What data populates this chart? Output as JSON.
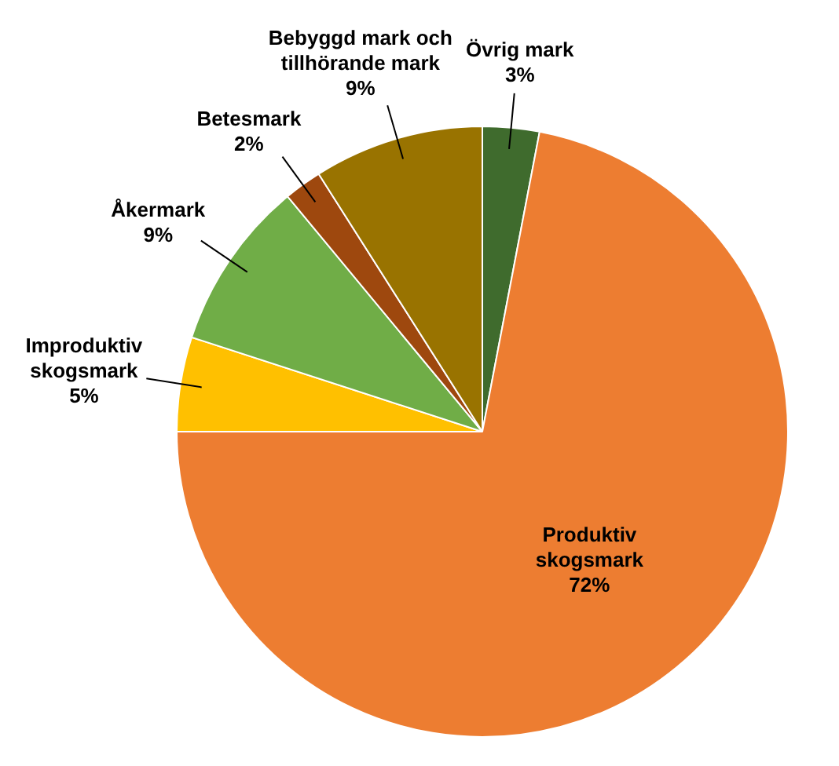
{
  "chart_data": {
    "type": "pie",
    "categories": [
      "Övrig mark",
      "Produktiv skogsmark",
      "Improduktiv skogsmark",
      "Åkermark",
      "Betesmark",
      "Bebyggd mark och tillhörande mark"
    ],
    "values": [
      3,
      72,
      5,
      9,
      2,
      9
    ],
    "colors": [
      "#3f6b2d",
      "#ed7d31",
      "#ffc000",
      "#70ad47",
      "#9e480e",
      "#997300"
    ],
    "value_labels": [
      "3%",
      "72%",
      "5%",
      "9%",
      "2%",
      "9%"
    ],
    "legend": false
  }
}
